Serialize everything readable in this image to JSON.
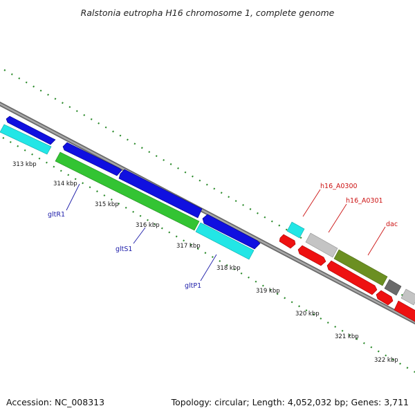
{
  "header": {
    "title": "Ralstonia eutropha H16 chromosome 1, complete genome"
  },
  "footer": {
    "accession": "Accession: NC_008313",
    "summary": "Topology: circular; Length: 4,052,032 bp; Genes: 3,711"
  },
  "scale": {
    "ticks": [
      "313 kbp",
      "314 kbp",
      "315 kbp",
      "316 kbp",
      "317 kbp",
      "318 kbp",
      "319 kbp",
      "320 kbp",
      "321 kbp",
      "322 kbp"
    ]
  },
  "gene_labels": [
    {
      "text": "gltR1",
      "color": "#1a1aa8"
    },
    {
      "text": "gltS1",
      "color": "#1a1aa8"
    },
    {
      "text": "gltP1",
      "color": "#1a1aa8"
    },
    {
      "text": "h16_A0300",
      "color": "#cc1111"
    },
    {
      "text": "h16_A0301",
      "color": "#cc1111"
    },
    {
      "text": "dac",
      "color": "#cc1111"
    }
  ],
  "feature_colors": {
    "blue": "#1010e0",
    "cyan": "#22e6e6",
    "green": "#33c433",
    "red": "#ee1111",
    "olive": "#6b8f22",
    "light_gray": "#c4c4c4",
    "dark_gray": "#6a6a6a",
    "backbone": "#8a8a8a",
    "ticks": "#2a8a2a"
  }
}
